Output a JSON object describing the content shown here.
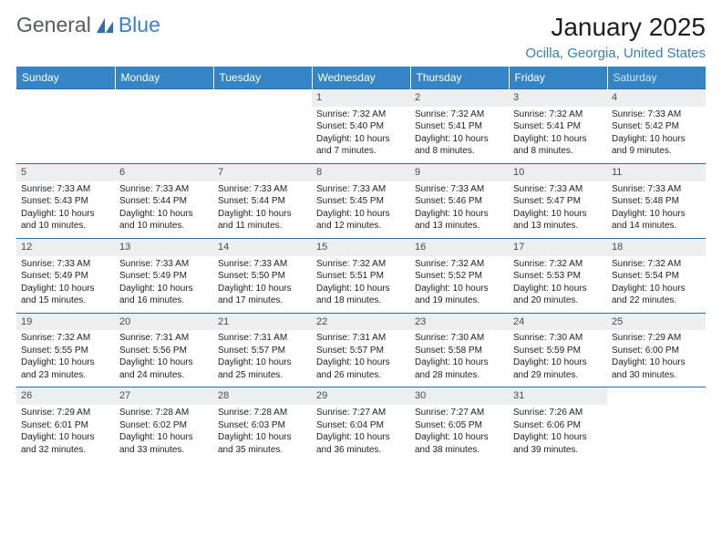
{
  "brand": {
    "text1": "General",
    "text2": "Blue"
  },
  "title": "January 2025",
  "location": "Ocilla, Georgia, United States",
  "colors": {
    "header_bg": "#3585c6",
    "header_text": "#ffffff",
    "accent_border": "#2c6ca6",
    "daynum_bg": "#eceeef",
    "location_text": "#3a7fbd",
    "brand_gray": "#555b62",
    "brand_blue": "#3a80c2",
    "background": "#ffffff"
  },
  "day_headers": [
    "Sunday",
    "Monday",
    "Tuesday",
    "Wednesday",
    "Thursday",
    "Friday",
    "Saturday"
  ],
  "weeks": [
    [
      {
        "n": "",
        "sr": "",
        "ss": "",
        "dl": ""
      },
      {
        "n": "",
        "sr": "",
        "ss": "",
        "dl": ""
      },
      {
        "n": "",
        "sr": "",
        "ss": "",
        "dl": ""
      },
      {
        "n": "1",
        "sr": "Sunrise: 7:32 AM",
        "ss": "Sunset: 5:40 PM",
        "dl": "Daylight: 10 hours and 7 minutes."
      },
      {
        "n": "2",
        "sr": "Sunrise: 7:32 AM",
        "ss": "Sunset: 5:41 PM",
        "dl": "Daylight: 10 hours and 8 minutes."
      },
      {
        "n": "3",
        "sr": "Sunrise: 7:32 AM",
        "ss": "Sunset: 5:41 PM",
        "dl": "Daylight: 10 hours and 8 minutes."
      },
      {
        "n": "4",
        "sr": "Sunrise: 7:33 AM",
        "ss": "Sunset: 5:42 PM",
        "dl": "Daylight: 10 hours and 9 minutes."
      }
    ],
    [
      {
        "n": "5",
        "sr": "Sunrise: 7:33 AM",
        "ss": "Sunset: 5:43 PM",
        "dl": "Daylight: 10 hours and 10 minutes."
      },
      {
        "n": "6",
        "sr": "Sunrise: 7:33 AM",
        "ss": "Sunset: 5:44 PM",
        "dl": "Daylight: 10 hours and 10 minutes."
      },
      {
        "n": "7",
        "sr": "Sunrise: 7:33 AM",
        "ss": "Sunset: 5:44 PM",
        "dl": "Daylight: 10 hours and 11 minutes."
      },
      {
        "n": "8",
        "sr": "Sunrise: 7:33 AM",
        "ss": "Sunset: 5:45 PM",
        "dl": "Daylight: 10 hours and 12 minutes."
      },
      {
        "n": "9",
        "sr": "Sunrise: 7:33 AM",
        "ss": "Sunset: 5:46 PM",
        "dl": "Daylight: 10 hours and 13 minutes."
      },
      {
        "n": "10",
        "sr": "Sunrise: 7:33 AM",
        "ss": "Sunset: 5:47 PM",
        "dl": "Daylight: 10 hours and 13 minutes."
      },
      {
        "n": "11",
        "sr": "Sunrise: 7:33 AM",
        "ss": "Sunset: 5:48 PM",
        "dl": "Daylight: 10 hours and 14 minutes."
      }
    ],
    [
      {
        "n": "12",
        "sr": "Sunrise: 7:33 AM",
        "ss": "Sunset: 5:49 PM",
        "dl": "Daylight: 10 hours and 15 minutes."
      },
      {
        "n": "13",
        "sr": "Sunrise: 7:33 AM",
        "ss": "Sunset: 5:49 PM",
        "dl": "Daylight: 10 hours and 16 minutes."
      },
      {
        "n": "14",
        "sr": "Sunrise: 7:33 AM",
        "ss": "Sunset: 5:50 PM",
        "dl": "Daylight: 10 hours and 17 minutes."
      },
      {
        "n": "15",
        "sr": "Sunrise: 7:32 AM",
        "ss": "Sunset: 5:51 PM",
        "dl": "Daylight: 10 hours and 18 minutes."
      },
      {
        "n": "16",
        "sr": "Sunrise: 7:32 AM",
        "ss": "Sunset: 5:52 PM",
        "dl": "Daylight: 10 hours and 19 minutes."
      },
      {
        "n": "17",
        "sr": "Sunrise: 7:32 AM",
        "ss": "Sunset: 5:53 PM",
        "dl": "Daylight: 10 hours and 20 minutes."
      },
      {
        "n": "18",
        "sr": "Sunrise: 7:32 AM",
        "ss": "Sunset: 5:54 PM",
        "dl": "Daylight: 10 hours and 22 minutes."
      }
    ],
    [
      {
        "n": "19",
        "sr": "Sunrise: 7:32 AM",
        "ss": "Sunset: 5:55 PM",
        "dl": "Daylight: 10 hours and 23 minutes."
      },
      {
        "n": "20",
        "sr": "Sunrise: 7:31 AM",
        "ss": "Sunset: 5:56 PM",
        "dl": "Daylight: 10 hours and 24 minutes."
      },
      {
        "n": "21",
        "sr": "Sunrise: 7:31 AM",
        "ss": "Sunset: 5:57 PM",
        "dl": "Daylight: 10 hours and 25 minutes."
      },
      {
        "n": "22",
        "sr": "Sunrise: 7:31 AM",
        "ss": "Sunset: 5:57 PM",
        "dl": "Daylight: 10 hours and 26 minutes."
      },
      {
        "n": "23",
        "sr": "Sunrise: 7:30 AM",
        "ss": "Sunset: 5:58 PM",
        "dl": "Daylight: 10 hours and 28 minutes."
      },
      {
        "n": "24",
        "sr": "Sunrise: 7:30 AM",
        "ss": "Sunset: 5:59 PM",
        "dl": "Daylight: 10 hours and 29 minutes."
      },
      {
        "n": "25",
        "sr": "Sunrise: 7:29 AM",
        "ss": "Sunset: 6:00 PM",
        "dl": "Daylight: 10 hours and 30 minutes."
      }
    ],
    [
      {
        "n": "26",
        "sr": "Sunrise: 7:29 AM",
        "ss": "Sunset: 6:01 PM",
        "dl": "Daylight: 10 hours and 32 minutes."
      },
      {
        "n": "27",
        "sr": "Sunrise: 7:28 AM",
        "ss": "Sunset: 6:02 PM",
        "dl": "Daylight: 10 hours and 33 minutes."
      },
      {
        "n": "28",
        "sr": "Sunrise: 7:28 AM",
        "ss": "Sunset: 6:03 PM",
        "dl": "Daylight: 10 hours and 35 minutes."
      },
      {
        "n": "29",
        "sr": "Sunrise: 7:27 AM",
        "ss": "Sunset: 6:04 PM",
        "dl": "Daylight: 10 hours and 36 minutes."
      },
      {
        "n": "30",
        "sr": "Sunrise: 7:27 AM",
        "ss": "Sunset: 6:05 PM",
        "dl": "Daylight: 10 hours and 38 minutes."
      },
      {
        "n": "31",
        "sr": "Sunrise: 7:26 AM",
        "ss": "Sunset: 6:06 PM",
        "dl": "Daylight: 10 hours and 39 minutes."
      },
      {
        "n": "",
        "sr": "",
        "ss": "",
        "dl": ""
      }
    ]
  ]
}
